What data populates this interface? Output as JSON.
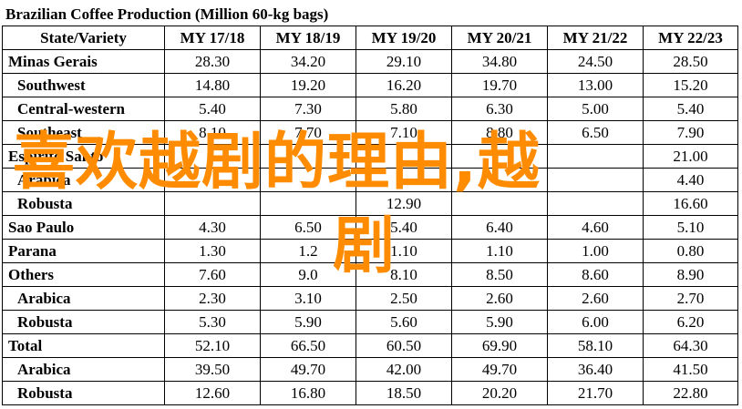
{
  "title": "Brazilian Coffee Production (Million 60-kg bags)",
  "headers": [
    "State/Variety",
    "MY 17/18",
    "MY 18/19",
    "MY 19/20",
    "MY 20/21",
    "MY 21/22",
    "MY 22/23"
  ],
  "rows": [
    {
      "label": "Minas Gerais",
      "style": "bold",
      "values": [
        "28.30",
        "34.20",
        "29.10",
        "34.80",
        "24.50",
        "28.50"
      ]
    },
    {
      "label": "Southwest",
      "style": "sub",
      "values": [
        "14.80",
        "19.20",
        "16.20",
        "19.70",
        "13.00",
        "15.20"
      ]
    },
    {
      "label": "Central-western",
      "style": "sub",
      "values": [
        "5.40",
        "7.30",
        "5.80",
        "6.30",
        "5.00",
        "5.40"
      ]
    },
    {
      "label": "Southeast",
      "style": "sub",
      "values": [
        "8.10",
        "7.70",
        "7.10",
        "8.80",
        "6.50",
        "7.90"
      ]
    },
    {
      "label": "Espirito Santo",
      "style": "bold",
      "values": [
        "",
        "",
        "",
        "",
        "",
        "21.00"
      ]
    },
    {
      "label": "Arabica",
      "style": "sub",
      "values": [
        "",
        "",
        "",
        "",
        "",
        "4.40"
      ]
    },
    {
      "label": "Robusta",
      "style": "sub",
      "values": [
        "",
        "",
        "12.90",
        "",
        "",
        "16.60"
      ]
    },
    {
      "label": "Sao Paulo",
      "style": "bold",
      "values": [
        "4.30",
        "6.50",
        "5.40",
        "6.40",
        "4.60",
        "5.10"
      ]
    },
    {
      "label": "Parana",
      "style": "bold",
      "values": [
        "1.30",
        "1.2",
        "1.10",
        "1.10",
        "1.00",
        "0.80"
      ]
    },
    {
      "label": "Others",
      "style": "bold",
      "values": [
        "7.60",
        "9.0",
        "8.10",
        "8.50",
        "8.60",
        "8.90"
      ]
    },
    {
      "label": "Arabica",
      "style": "sub",
      "values": [
        "2.30",
        "3.10",
        "2.50",
        "2.60",
        "2.60",
        "2.70"
      ]
    },
    {
      "label": "Robusta",
      "style": "sub",
      "values": [
        "5.30",
        "5.90",
        "5.60",
        "5.90",
        "6.00",
        "6.20"
      ]
    },
    {
      "label": "Total",
      "style": "bold",
      "values": [
        "52.10",
        "66.50",
        "60.50",
        "69.90",
        "58.10",
        "64.30"
      ]
    },
    {
      "label": "Arabica",
      "style": "sub",
      "values": [
        "39.50",
        "49.70",
        "42.00",
        "49.70",
        "36.40",
        "41.50"
      ]
    },
    {
      "label": "Robusta",
      "style": "sub",
      "values": [
        "12.60",
        "16.80",
        "18.50",
        "20.20",
        "21.70",
        "22.80"
      ]
    }
  ],
  "watermark": {
    "line1": "喜欢越剧的理由,越",
    "line2": "剧",
    "color": "#ff8c00"
  }
}
